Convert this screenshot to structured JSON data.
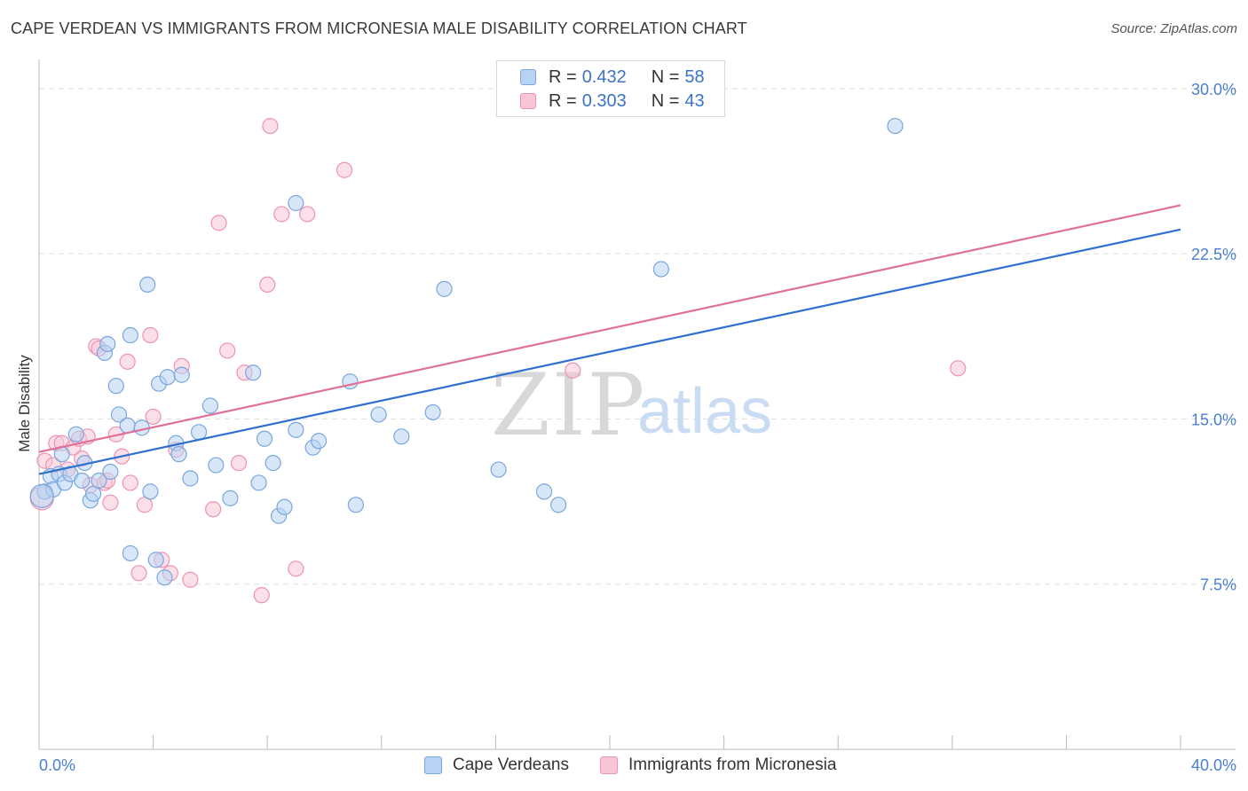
{
  "header": {
    "title": "CAPE VERDEAN VS IMMIGRANTS FROM MICRONESIA MALE DISABILITY CORRELATION CHART",
    "source": "Source: ZipAtlas.com"
  },
  "watermark": {
    "zip": "ZIP",
    "atlas": "atlas"
  },
  "legend": {
    "rows": [
      {
        "r_label": "R =",
        "r_value": "0.432",
        "n_label": "N =",
        "n_value": "58"
      },
      {
        "r_label": "R =",
        "r_value": "0.303",
        "n_label": "N =",
        "n_value": "43"
      }
    ]
  },
  "colors": {
    "blue_fill": "#b8d3f3",
    "blue_stroke": "#7aa7de",
    "blue_line": "#2f6fcf",
    "pink_fill": "#f9c6d6",
    "pink_stroke": "#ee93b2",
    "pink_line": "#e0709a",
    "tick_text": "#4a7fd0",
    "grid": "#dddddd"
  },
  "chart_data": {
    "type": "scatter",
    "title": "CAPE VERDEAN VS IMMIGRANTS FROM MICRONESIA MALE DISABILITY CORRELATION CHART",
    "xlabel": "",
    "ylabel": "Male Disability",
    "xlim": [
      0,
      40
    ],
    "ylim": [
      0,
      31
    ],
    "x_tick_labels": [
      "0.0%",
      "40.0%"
    ],
    "y_ticks": [
      7.5,
      15.0,
      22.5,
      30.0
    ],
    "y_tick_labels": [
      "7.5%",
      "15.0%",
      "22.5%",
      "30.0%"
    ],
    "grid": true,
    "legend_position": "bottom",
    "series": [
      {
        "name": "Cape Verdeans",
        "R": 0.432,
        "N": 58,
        "trend": {
          "x": [
            0,
            40
          ],
          "y": [
            12.5,
            23.6
          ]
        },
        "points": [
          [
            0.2,
            11.7
          ],
          [
            0.4,
            12.4
          ],
          [
            0.5,
            11.8
          ],
          [
            0.7,
            12.5
          ],
          [
            0.8,
            13.4
          ],
          [
            0.9,
            12.1
          ],
          [
            1.1,
            12.5
          ],
          [
            1.3,
            14.3
          ],
          [
            1.5,
            12.2
          ],
          [
            1.6,
            13.0
          ],
          [
            1.8,
            11.3
          ],
          [
            1.9,
            11.6
          ],
          [
            2.1,
            12.2
          ],
          [
            2.3,
            18.0
          ],
          [
            2.4,
            18.4
          ],
          [
            2.5,
            12.6
          ],
          [
            2.7,
            16.5
          ],
          [
            2.8,
            15.2
          ],
          [
            3.1,
            14.7
          ],
          [
            3.2,
            18.8
          ],
          [
            3.6,
            14.6
          ],
          [
            3.8,
            21.1
          ],
          [
            3.9,
            11.7
          ],
          [
            4.2,
            16.6
          ],
          [
            4.4,
            7.8
          ],
          [
            4.5,
            16.9
          ],
          [
            4.8,
            13.9
          ],
          [
            4.9,
            13.4
          ],
          [
            5.0,
            17.0
          ],
          [
            5.3,
            12.3
          ],
          [
            5.6,
            14.4
          ],
          [
            6.0,
            15.6
          ],
          [
            6.2,
            12.9
          ],
          [
            6.7,
            11.4
          ],
          [
            7.5,
            17.1
          ],
          [
            7.7,
            12.1
          ],
          [
            7.9,
            14.1
          ],
          [
            8.2,
            13.0
          ],
          [
            8.4,
            10.6
          ],
          [
            8.6,
            11.0
          ],
          [
            9.0,
            24.8
          ],
          [
            9.0,
            14.5
          ],
          [
            9.6,
            13.7
          ],
          [
            9.8,
            14.0
          ],
          [
            10.9,
            16.7
          ],
          [
            11.9,
            15.2
          ],
          [
            11.1,
            11.1
          ],
          [
            12.7,
            14.2
          ],
          [
            13.8,
            15.3
          ],
          [
            14.2,
            20.9
          ],
          [
            16.1,
            12.7
          ],
          [
            17.7,
            11.7
          ],
          [
            18.2,
            11.1
          ],
          [
            21.8,
            21.8
          ],
          [
            30.0,
            28.3
          ],
          [
            3.2,
            8.9
          ],
          [
            4.1,
            8.6
          ],
          [
            0.1,
            11.5
          ]
        ]
      },
      {
        "name": "Immigrants from Micronesia",
        "R": 0.303,
        "N": 43,
        "trend": {
          "x": [
            0,
            40
          ],
          "y": [
            13.5,
            24.7
          ]
        },
        "points": [
          [
            0.2,
            13.1
          ],
          [
            0.5,
            12.9
          ],
          [
            0.6,
            13.9
          ],
          [
            0.8,
            13.9
          ],
          [
            1.0,
            12.7
          ],
          [
            1.2,
            13.7
          ],
          [
            1.4,
            14.1
          ],
          [
            1.5,
            13.2
          ],
          [
            1.7,
            14.2
          ],
          [
            1.8,
            12.0
          ],
          [
            2.0,
            18.3
          ],
          [
            2.1,
            18.2
          ],
          [
            2.3,
            12.1
          ],
          [
            2.4,
            12.2
          ],
          [
            2.5,
            11.2
          ],
          [
            2.7,
            14.3
          ],
          [
            2.9,
            13.3
          ],
          [
            3.1,
            17.6
          ],
          [
            3.2,
            12.1
          ],
          [
            3.5,
            8.0
          ],
          [
            3.7,
            11.1
          ],
          [
            3.9,
            18.8
          ],
          [
            4.0,
            15.1
          ],
          [
            4.3,
            8.6
          ],
          [
            4.6,
            8.0
          ],
          [
            4.8,
            13.6
          ],
          [
            5.0,
            17.4
          ],
          [
            5.3,
            7.7
          ],
          [
            6.1,
            10.9
          ],
          [
            6.3,
            23.9
          ],
          [
            6.6,
            18.1
          ],
          [
            7.0,
            13.0
          ],
          [
            7.2,
            17.1
          ],
          [
            7.8,
            7.0
          ],
          [
            8.0,
            21.1
          ],
          [
            8.1,
            28.3
          ],
          [
            8.5,
            24.3
          ],
          [
            9.0,
            8.2
          ],
          [
            9.4,
            24.3
          ],
          [
            10.7,
            26.3
          ],
          [
            18.7,
            17.2
          ],
          [
            32.2,
            17.3
          ],
          [
            0.1,
            11.4
          ]
        ]
      }
    ]
  },
  "bottom_legend": {
    "items": [
      "Cape Verdeans",
      "Immigrants from Micronesia"
    ]
  }
}
